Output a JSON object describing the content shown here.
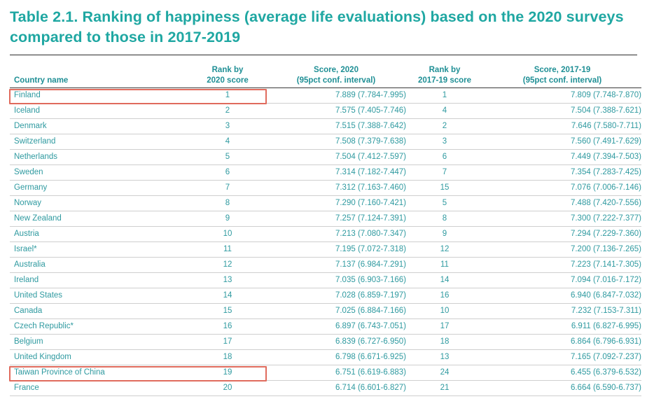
{
  "title": "Table 2.1. Ranking of happiness (average life evaluations) based on the 2020 surveys compared to those in 2017-2019",
  "headers": {
    "country": "Country name",
    "rank2020_l1": "Rank by",
    "rank2020_l2": "2020 score",
    "score2020_l1": "Score, 2020",
    "score2020_l2": "(95pct conf. interval)",
    "rank1719_l1": "Rank by",
    "rank1719_l2": "2017-19 score",
    "score1719_l1": "Score, 2017-19",
    "score1719_l2": "(95pct conf. interval)"
  },
  "rows": [
    {
      "country": "Finland",
      "rank2020": "1",
      "score2020": "7.889 (7.784-7.995)",
      "rank1719": "1",
      "score1719": "7.809 (7.748-7.870)",
      "highlighted": true
    },
    {
      "country": "Iceland",
      "rank2020": "2",
      "score2020": "7.575 (7.405-7.746)",
      "rank1719": "4",
      "score1719": "7.504 (7.388-7.621)"
    },
    {
      "country": "Denmark",
      "rank2020": "3",
      "score2020": "7.515 (7.388-7.642)",
      "rank1719": "2",
      "score1719": "7.646 (7.580-7.711)"
    },
    {
      "country": "Switzerland",
      "rank2020": "4",
      "score2020": "7.508 (7.379-7.638)",
      "rank1719": "3",
      "score1719": "7.560 (7.491-7.629)"
    },
    {
      "country": "Netherlands",
      "rank2020": "5",
      "score2020": "7.504 (7.412-7.597)",
      "rank1719": "6",
      "score1719": "7.449 (7.394-7.503)"
    },
    {
      "country": "Sweden",
      "rank2020": "6",
      "score2020": "7.314 (7.182-7.447)",
      "rank1719": "7",
      "score1719": "7.354 (7.283-7.425)"
    },
    {
      "country": "Germany",
      "rank2020": "7",
      "score2020": "7.312 (7.163-7.460)",
      "rank1719": "15",
      "score1719": "7.076 (7.006-7.146)"
    },
    {
      "country": "Norway",
      "rank2020": "8",
      "score2020": "7.290 (7.160-7.421)",
      "rank1719": "5",
      "score1719": "7.488 (7.420-7.556)"
    },
    {
      "country": "New Zealand",
      "rank2020": "9",
      "score2020": "7.257 (7.124-7.391)",
      "rank1719": "8",
      "score1719": "7.300 (7.222-7.377)"
    },
    {
      "country": "Austria",
      "rank2020": "10",
      "score2020": "7.213 (7.080-7.347)",
      "rank1719": "9",
      "score1719": "7.294 (7.229-7.360)"
    },
    {
      "country": "Israel*",
      "rank2020": "11",
      "score2020": "7.195 (7.072-7.318)",
      "rank1719": "12",
      "score1719": "7.200 (7.136-7.265)"
    },
    {
      "country": "Australia",
      "rank2020": "12",
      "score2020": "7.137 (6.984-7.291)",
      "rank1719": "11",
      "score1719": "7.223 (7.141-7.305)"
    },
    {
      "country": "Ireland",
      "rank2020": "13",
      "score2020": "7.035 (6.903-7.166)",
      "rank1719": "14",
      "score1719": "7.094 (7.016-7.172)"
    },
    {
      "country": "United States",
      "rank2020": "14",
      "score2020": "7.028 (6.859-7.197)",
      "rank1719": "16",
      "score1719": "6.940 (6.847-7.032)"
    },
    {
      "country": "Canada",
      "rank2020": "15",
      "score2020": "7.025 (6.884-7.166)",
      "rank1719": "10",
      "score1719": "7.232 (7.153-7.311)"
    },
    {
      "country": "Czech Republic*",
      "rank2020": "16",
      "score2020": "6.897 (6.743-7.051)",
      "rank1719": "17",
      "score1719": "6.911 (6.827-6.995)"
    },
    {
      "country": "Belgium",
      "rank2020": "17",
      "score2020": "6.839 (6.727-6.950)",
      "rank1719": "18",
      "score1719": "6.864 (6.796-6.931)"
    },
    {
      "country": "United Kingdom",
      "rank2020": "18",
      "score2020": "6.798 (6.671-6.925)",
      "rank1719": "13",
      "score1719": "7.165 (7.092-7.237)"
    },
    {
      "country": "Taiwan Province of China",
      "rank2020": "19",
      "score2020": "6.751 (6.619-6.883)",
      "rank1719": "24",
      "score1719": "6.455 (6.379-6.532)",
      "highlighted": true
    },
    {
      "country": "France",
      "rank2020": "20",
      "score2020": "6.714 (6.601-6.827)",
      "rank1719": "21",
      "score1719": "6.664 (6.590-6.737)"
    }
  ],
  "colors": {
    "title": "#1fa7a2",
    "header": "#1f8f95",
    "cell": "#2f9aa0",
    "highlight": "#e06b5d"
  }
}
